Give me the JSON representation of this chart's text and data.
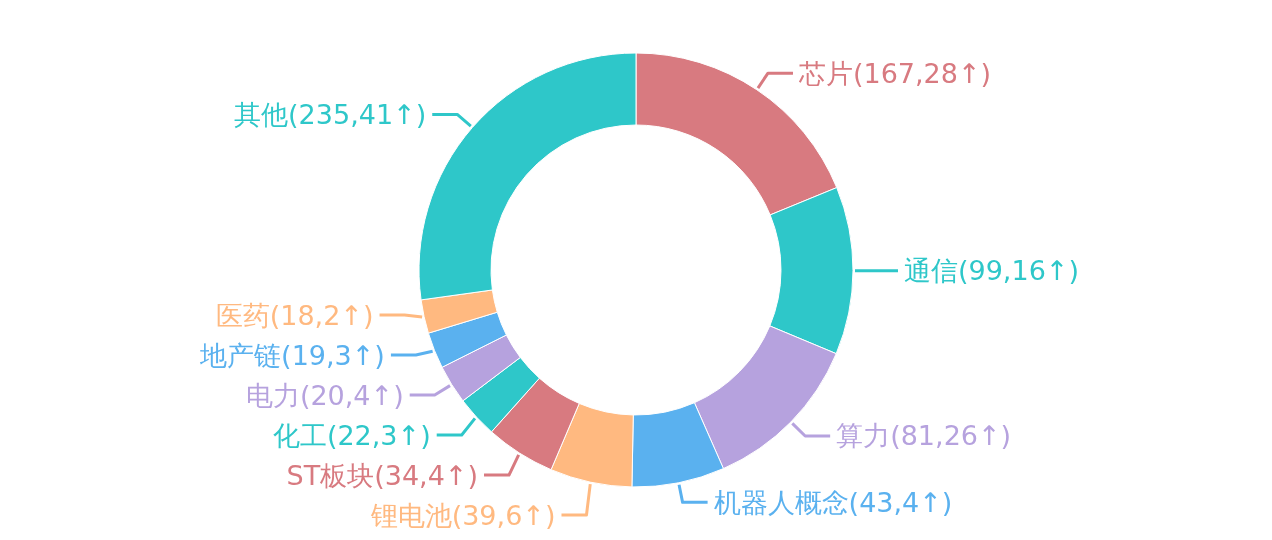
{
  "chart_data": {
    "type": "donut",
    "categories": [
      "芯片(167,28↑)",
      "通信(99,16↑)",
      "算力(81,26↑)",
      "机器人概念(43,4↑)",
      "锂电池(39,6↑)",
      "ST板块(34,4↑)",
      "化工(22,3↑)",
      "电力(20,4↑)",
      "地产链(19,3↑)",
      "医药(18,2↑)",
      "其他(235,41↑)"
    ],
    "values": [
      18.8,
      12.5,
      12.1,
      6.9,
      6.1,
      5.2,
      3.1,
      2.9,
      2.7,
      2.5,
      27.2
    ],
    "colors": [
      "#d87a80",
      "#2ec7c9",
      "#b6a2de",
      "#5ab1ef",
      "#ffb980",
      "#d87a80",
      "#2ec7c9",
      "#b6a2de",
      "#5ab1ef",
      "#ffb980",
      "#2ec7c9"
    ]
  }
}
